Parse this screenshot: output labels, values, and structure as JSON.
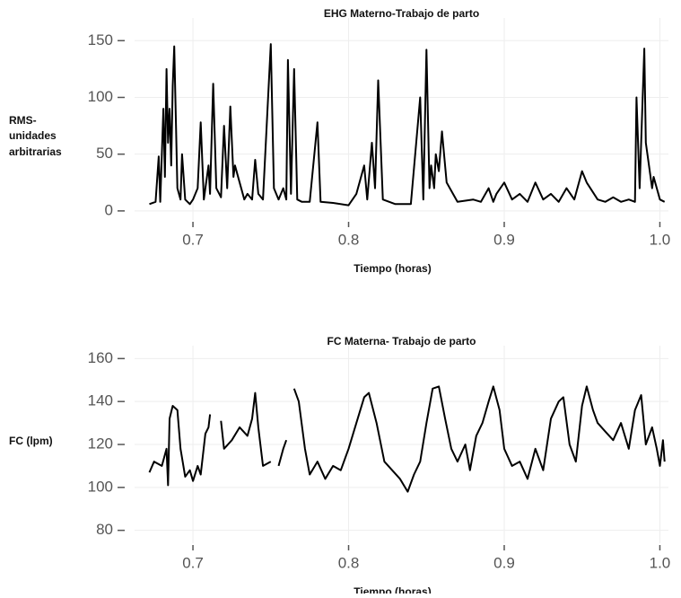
{
  "chart_data": [
    {
      "type": "line",
      "title": "EHG Materno-Trabajo de parto",
      "xlabel": "Tiempo (horas)",
      "ylabel": [
        "RMS-",
        "unidades",
        "arbitrarias"
      ],
      "x": [
        0.672,
        0.676,
        0.678,
        0.679,
        0.681,
        0.682,
        0.683,
        0.684,
        0.685,
        0.686,
        0.687,
        0.688,
        0.69,
        0.692,
        0.693,
        0.695,
        0.698,
        0.7,
        0.703,
        0.705,
        0.707,
        0.71,
        0.711,
        0.713,
        0.715,
        0.718,
        0.72,
        0.722,
        0.724,
        0.726,
        0.727,
        0.73,
        0.733,
        0.735,
        0.738,
        0.74,
        0.742,
        0.745,
        0.75,
        0.752,
        0.755,
        0.758,
        0.76,
        0.761,
        0.763,
        0.765,
        0.767,
        0.77,
        0.775,
        0.78,
        0.782,
        0.79,
        0.8,
        0.805,
        0.81,
        0.812,
        0.815,
        0.817,
        0.819,
        0.822,
        0.83,
        0.84,
        0.846,
        0.848,
        0.85,
        0.852,
        0.853,
        0.855,
        0.856,
        0.858,
        0.86,
        0.863,
        0.87,
        0.88,
        0.885,
        0.89,
        0.893,
        0.895,
        0.9,
        0.905,
        0.91,
        0.915,
        0.92,
        0.925,
        0.93,
        0.935,
        0.94,
        0.945,
        0.95,
        0.953,
        0.96,
        0.965,
        0.97,
        0.975,
        0.98,
        0.984,
        0.985,
        0.987,
        0.99,
        0.991,
        0.993,
        0.995,
        0.996,
        1.0,
        1.003
      ],
      "values": [
        6,
        8,
        48,
        8,
        90,
        30,
        125,
        60,
        90,
        40,
        110,
        145,
        20,
        10,
        50,
        10,
        6,
        10,
        20,
        78,
        10,
        40,
        15,
        112,
        20,
        12,
        75,
        20,
        92,
        30,
        40,
        25,
        10,
        15,
        10,
        45,
        15,
        10,
        147,
        20,
        10,
        20,
        10,
        133,
        15,
        125,
        10,
        8,
        8,
        78,
        8,
        7,
        5,
        15,
        40,
        10,
        60,
        20,
        115,
        10,
        6,
        6,
        100,
        10,
        142,
        20,
        40,
        20,
        50,
        35,
        70,
        25,
        8,
        10,
        8,
        20,
        8,
        15,
        25,
        10,
        15,
        8,
        25,
        10,
        15,
        8,
        20,
        10,
        35,
        25,
        10,
        8,
        12,
        8,
        10,
        8,
        100,
        20,
        143,
        60,
        40,
        20,
        30,
        10,
        8
      ],
      "color": "#000000",
      "xlim": [
        0.6625,
        1.0055
      ],
      "ylim": [
        -8,
        170
      ],
      "xticks": [
        0.7,
        0.8,
        0.9,
        {
          "value": 1,
          "label": "1.0"
        }
      ],
      "yticks": [
        0,
        50,
        100,
        150
      ],
      "grid": true
    },
    {
      "type": "line",
      "title": "FC Materna- Trabajo de parto",
      "xlabel": "Tiempo (horas)",
      "ylabel": [
        "FC (lpm)"
      ],
      "x": [
        0.672,
        0.675,
        0.68,
        0.683,
        0.684,
        0.685,
        0.687,
        0.69,
        0.692,
        0.695,
        0.698,
        0.7,
        0.703,
        0.705,
        0.708,
        0.71,
        0.711,
        0.712,
        0.718,
        0.72,
        0.725,
        0.73,
        0.735,
        0.738,
        0.74,
        0.742,
        0.745,
        0.75,
        0.752,
        0.755,
        0.758,
        0.76,
        0.762,
        0.765,
        0.768,
        0.772,
        0.775,
        0.78,
        0.785,
        0.79,
        0.795,
        0.8,
        0.805,
        0.81,
        0.813,
        0.818,
        0.823,
        0.828,
        0.833,
        0.838,
        0.842,
        0.846,
        0.85,
        0.854,
        0.858,
        0.862,
        0.866,
        0.87,
        0.875,
        0.878,
        0.882,
        0.886,
        0.89,
        0.893,
        0.897,
        0.9,
        0.905,
        0.91,
        0.915,
        0.92,
        0.925,
        0.93,
        0.935,
        0.938,
        0.942,
        0.946,
        0.95,
        0.953,
        0.957,
        0.96,
        0.965,
        0.97,
        0.975,
        0.98,
        0.984,
        0.988,
        0.991,
        0.995,
        0.998,
        1.0,
        1.002,
        1.003
      ],
      "values": [
        107,
        112,
        110,
        118,
        101,
        132,
        138,
        136,
        118,
        105,
        108,
        103,
        110,
        106,
        125,
        128,
        134,
        null,
        131,
        118,
        122,
        128,
        124,
        132,
        144,
        128,
        110,
        112,
        null,
        110,
        118,
        122,
        null,
        146,
        140,
        118,
        106,
        112,
        104,
        110,
        108,
        118,
        130,
        142,
        144,
        130,
        112,
        108,
        104,
        98,
        106,
        112,
        130,
        146,
        147,
        132,
        118,
        112,
        120,
        108,
        124,
        130,
        140,
        147,
        136,
        118,
        110,
        112,
        104,
        118,
        108,
        132,
        140,
        142,
        120,
        112,
        138,
        147,
        136,
        130,
        126,
        122,
        130,
        118,
        136,
        143,
        120,
        128,
        118,
        110,
        122,
        112
      ],
      "color": "#000000",
      "xlim": [
        0.6625,
        1.0055
      ],
      "ylim": [
        74,
        166
      ],
      "xticks": [
        0.7,
        0.8,
        0.9,
        {
          "value": 1,
          "label": "1.0"
        }
      ],
      "yticks": [
        80,
        100,
        120,
        140,
        160
      ],
      "grid": true
    }
  ]
}
